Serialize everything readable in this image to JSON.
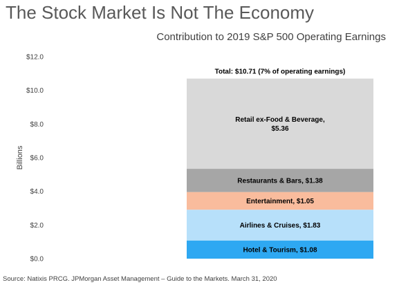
{
  "header": {
    "title": "The Stock Market Is Not The Economy",
    "subtitle": "Contribution to 2019 S&P 500 Operating Earnings"
  },
  "footer": {
    "source": "Source: Natixis PRCG. JPMorgan Asset Management – Guide to the Markets. March 31, 2020"
  },
  "chart_data": {
    "type": "bar",
    "stacked": true,
    "title": "Contribution to 2019 S&P 500 Operating Earnings",
    "ylabel": "Billions",
    "ylim": [
      0,
      12
    ],
    "yticks": [
      0,
      2,
      4,
      6,
      8,
      10,
      12
    ],
    "ytick_labels": [
      "$0.0",
      "$2.0",
      "$4.0",
      "$6.0",
      "$8.0",
      "$10.0",
      "$12.0"
    ],
    "grid": false,
    "total": 10.71,
    "total_label": "Total:  $10.71 (7% of operating earnings)",
    "series": [
      {
        "name": "Hotel & Tourism",
        "value": 1.08,
        "label_lines": [
          "Hotel & Tourism,  $1.08"
        ],
        "color": "#2ea8f2"
      },
      {
        "name": "Airlines & Cruises",
        "value": 1.83,
        "label_lines": [
          "Airlines & Cruises,  $1.83"
        ],
        "color": "#b7e0fa"
      },
      {
        "name": "Entertainment",
        "value": 1.05,
        "label_lines": [
          "Entertainment,  $1.05"
        ],
        "color": "#f9bc9d"
      },
      {
        "name": "Restaurants & Bars",
        "value": 1.38,
        "label_lines": [
          "Restaurants & Bars,  $1.38"
        ],
        "color": "#a6a6a6"
      },
      {
        "name": "Retail ex-Food & Beverage",
        "value": 5.36,
        "label_lines": [
          "Retail ex-Food & Beverage,",
          "$5.36"
        ],
        "color": "#d9d9d9"
      }
    ]
  }
}
